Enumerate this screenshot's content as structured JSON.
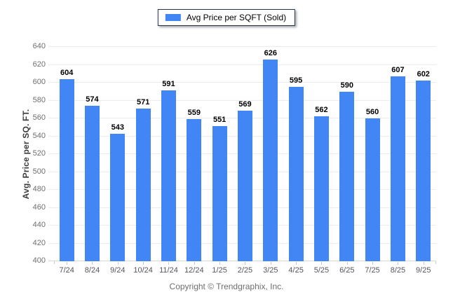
{
  "legend": {
    "label": "Avg Price per SQFT (Sold)",
    "swatch_color": "#4285f4"
  },
  "chart_data": {
    "type": "bar",
    "title": "Avg Price per SQFT (Sold)",
    "categories": [
      "7/24",
      "8/24",
      "9/24",
      "10/24",
      "11/24",
      "12/24",
      "1/25",
      "2/25",
      "3/25",
      "4/25",
      "5/25",
      "6/25",
      "7/25",
      "8/25",
      "9/25"
    ],
    "values": [
      604,
      574,
      543,
      571,
      591,
      559,
      551,
      569,
      626,
      595,
      562,
      590,
      560,
      607,
      602
    ],
    "xlabel": "",
    "ylabel": "Avg. Price per SQ. FT.",
    "ylim": [
      400,
      640
    ],
    "ytick_step": 20,
    "bar_color": "#4285f4",
    "grid": true,
    "legend_position": "top",
    "value_labels": true
  },
  "footer": {
    "copyright": "Copyright © Trendgraphix, Inc."
  }
}
